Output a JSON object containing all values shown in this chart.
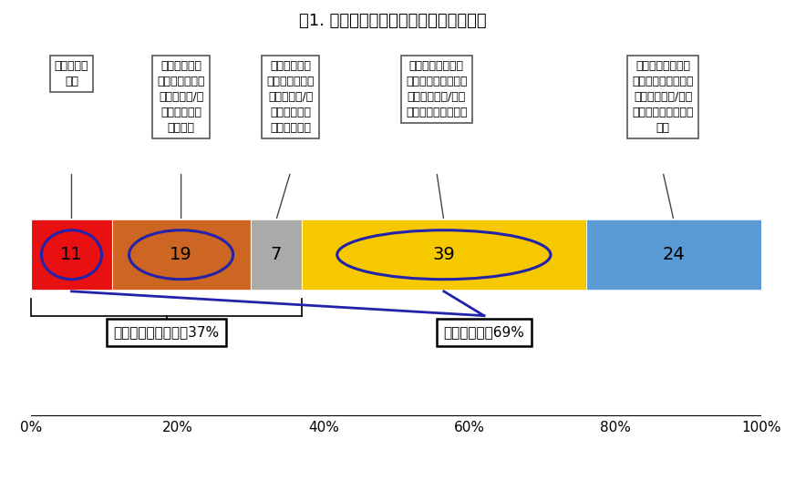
{
  "title": "図1. 自治体が作成したアプリの利用意向",
  "segments": [
    {
      "value": 11,
      "color": "#e81010",
      "text_color": "black"
    },
    {
      "value": 19,
      "color": "#cc6622",
      "text_color": "black"
    },
    {
      "value": 7,
      "color": "#aaaaaa",
      "text_color": "black"
    },
    {
      "value": 39,
      "color": "#f5c800",
      "text_color": "black"
    },
    {
      "value": 24,
      "color": "#5b9bd5",
      "text_color": "black"
    }
  ],
  "labels": [
    "インストー\nル済",
    "自治体のアプ\nリがあることを\n知っていた/今\n後インストー\nルしたい",
    "自治体のアプ\nリがあることを\n知っていた/今\n後インストー\nルしたくない",
    "自治体のアプリが\nあるか分からない・\nアプリはない/今後\nインストールしたい",
    "自治体のアプリが\nあるか分からない・\nアプリはない/今後\nインストールしたく\nない"
  ],
  "circled_segments": [
    0,
    1,
    3
  ],
  "circle_color": "#2222aa",
  "annotation1": "存在を知っている：37%",
  "annotation2": "利用意向有：69%",
  "bg_color": "#ffffff",
  "title_fontsize": 13,
  "bar_fontsize": 14,
  "label_fontsize": 9,
  "annot_fontsize": 11
}
